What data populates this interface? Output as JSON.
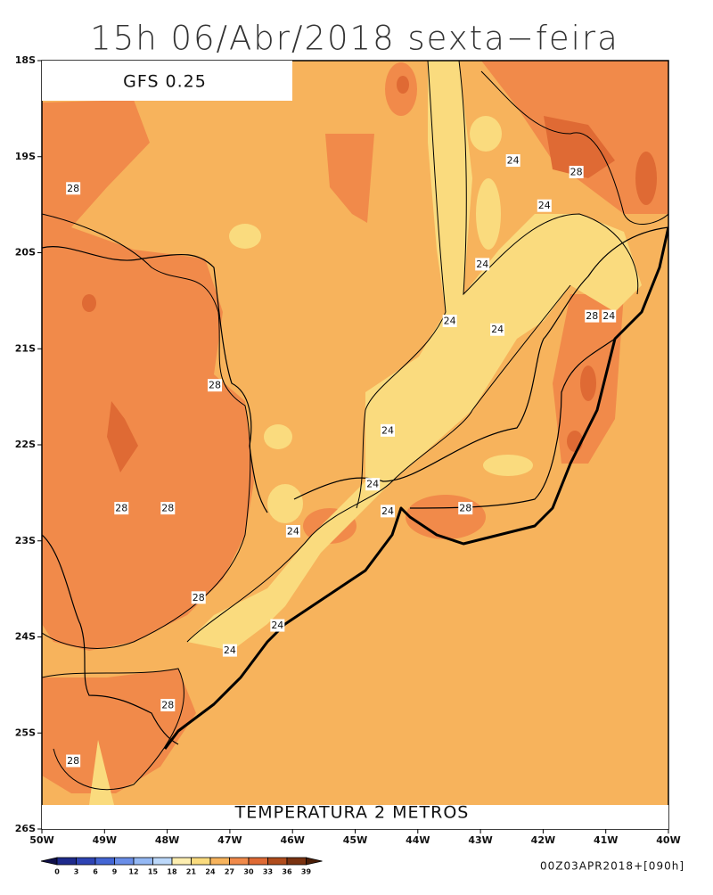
{
  "title": "15h 06/Abr/2018 sexta−feira",
  "model": "GFS 0.25",
  "variable": "TEMPERATURA 2 METROS",
  "run": "00Z03APR2018+[090h]",
  "axes": {
    "xlim": [
      -50,
      -40
    ],
    "ylim": [
      -26,
      -18
    ],
    "xticks": [
      {
        "value": -50,
        "label": "50W"
      },
      {
        "value": -49,
        "label": "49W"
      },
      {
        "value": -48,
        "label": "48W"
      },
      {
        "value": -47,
        "label": "47W"
      },
      {
        "value": -46,
        "label": "46W"
      },
      {
        "value": -45,
        "label": "45W"
      },
      {
        "value": -44,
        "label": "44W"
      },
      {
        "value": -43,
        "label": "43W"
      },
      {
        "value": -42,
        "label": "42W"
      },
      {
        "value": -41,
        "label": "41W"
      },
      {
        "value": -40,
        "label": "40W"
      }
    ],
    "yticks": [
      {
        "value": -18,
        "label": "18S"
      },
      {
        "value": -19,
        "label": "19S"
      },
      {
        "value": -20,
        "label": "20S"
      },
      {
        "value": -21,
        "label": "21S"
      },
      {
        "value": -22,
        "label": "22S"
      },
      {
        "value": -23,
        "label": "23S"
      },
      {
        "value": -24,
        "label": "24S"
      },
      {
        "value": -25,
        "label": "25S"
      },
      {
        "value": -26,
        "label": "26S"
      }
    ]
  },
  "colorbar": {
    "ticks": [
      0,
      3,
      6,
      9,
      12,
      15,
      18,
      21,
      24,
      27,
      30,
      33,
      36,
      39
    ],
    "colors": [
      "#10104a",
      "#1e2a8c",
      "#2e44b4",
      "#4466d4",
      "#6a8ee8",
      "#94b8f4",
      "#bcd8fa",
      "#fdeeb0",
      "#fadb7e",
      "#f7b35c",
      "#f18a4a",
      "#df6a34",
      "#b04c1c",
      "#7a3210",
      "#4a1e08"
    ]
  },
  "contour_labels": [
    {
      "value": 28,
      "lon": -49.5,
      "lat": -19.33
    },
    {
      "value": 24,
      "lon": -42.48,
      "lat": -19.04
    },
    {
      "value": 28,
      "lon": -41.47,
      "lat": -19.16
    },
    {
      "value": 24,
      "lon": -41.98,
      "lat": -19.51
    },
    {
      "value": 24,
      "lon": -42.97,
      "lat": -20.12
    },
    {
      "value": 24,
      "lon": -43.49,
      "lat": -20.71
    },
    {
      "value": 24,
      "lon": -42.73,
      "lat": -20.8
    },
    {
      "value": 28,
      "lon": -41.22,
      "lat": -20.66
    },
    {
      "value": 24,
      "lon": -40.95,
      "lat": -20.66
    },
    {
      "value": 28,
      "lon": -47.24,
      "lat": -21.38
    },
    {
      "value": 24,
      "lon": -44.48,
      "lat": -21.85
    },
    {
      "value": 24,
      "lon": -44.72,
      "lat": -22.41
    },
    {
      "value": 24,
      "lon": -44.48,
      "lat": -22.69
    },
    {
      "value": 28,
      "lon": -43.24,
      "lat": -22.66
    },
    {
      "value": 28,
      "lon": -48.73,
      "lat": -22.66
    },
    {
      "value": 28,
      "lon": -47.99,
      "lat": -22.66
    },
    {
      "value": 24,
      "lon": -45.99,
      "lat": -22.9
    },
    {
      "value": 28,
      "lon": -47.5,
      "lat": -23.59
    },
    {
      "value": 24,
      "lon": -46.24,
      "lat": -23.88
    },
    {
      "value": 24,
      "lon": -47.0,
      "lat": -24.14
    },
    {
      "value": 28,
      "lon": -47.99,
      "lat": -24.71
    },
    {
      "value": 28,
      "lon": -49.5,
      "lat": -25.29
    }
  ]
}
